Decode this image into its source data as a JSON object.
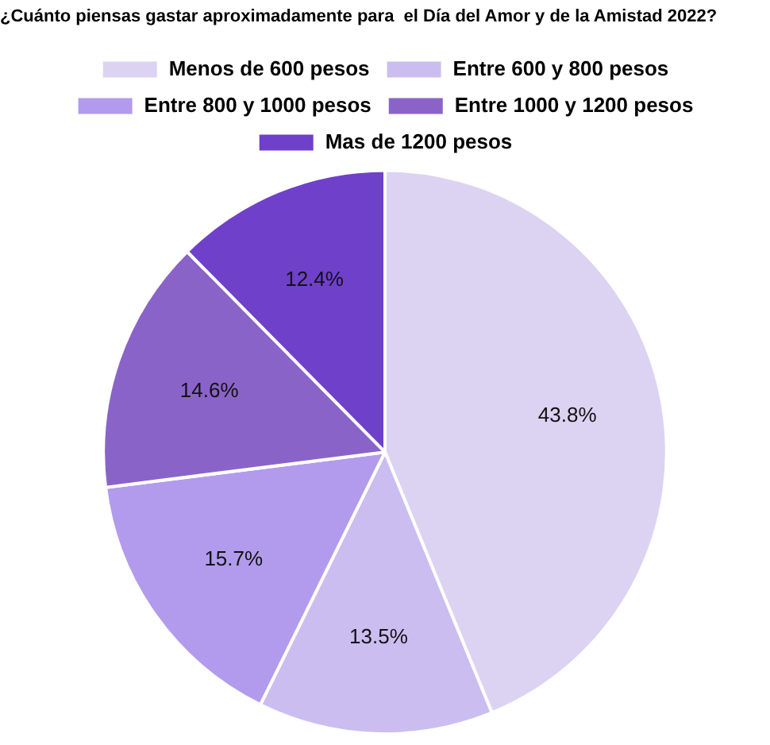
{
  "chart_data": {
    "type": "pie",
    "title": "¿Cuánto piensas gastar aproximadamente para  el Día del Amor y de la Amistad 2022?",
    "categories": [
      "Menos de 600 pesos",
      "Entre 600 y 800 pesos",
      "Entre 800 y 1000 pesos",
      "Entre 1000 y 1200 pesos",
      "Mas de 1200 pesos"
    ],
    "values": [
      43.8,
      13.5,
      15.7,
      14.6,
      12.4
    ],
    "colors": [
      "#dcd3f3",
      "#cbbdf0",
      "#b29bec",
      "#8a63c8",
      "#6f40c9"
    ],
    "value_labels": [
      "43.8%",
      "13.5%",
      "15.7%",
      "14.6%",
      "12.4%"
    ],
    "legend": "top"
  }
}
